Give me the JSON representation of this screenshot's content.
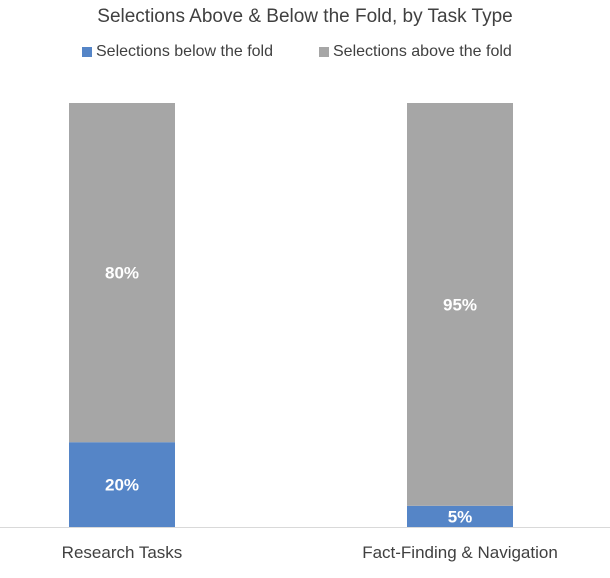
{
  "chart_data": {
    "type": "bar",
    "stacked": true,
    "percent_stacked": true,
    "title": "Selections Above & Below the Fold, by Task Type",
    "categories": [
      "Research Tasks",
      "Fact-Finding & Navigation"
    ],
    "series": [
      {
        "name": "Selections below the fold",
        "color": "#5585c7",
        "values": [
          20,
          5
        ],
        "labels": [
          "20%",
          "5%"
        ]
      },
      {
        "name": "Selections above the fold",
        "color": "#a6a6a6",
        "values": [
          80,
          95
        ],
        "labels": [
          "80%",
          "95%"
        ]
      }
    ],
    "ylim": [
      0,
      100
    ],
    "grid": false,
    "legend_position": "top"
  }
}
